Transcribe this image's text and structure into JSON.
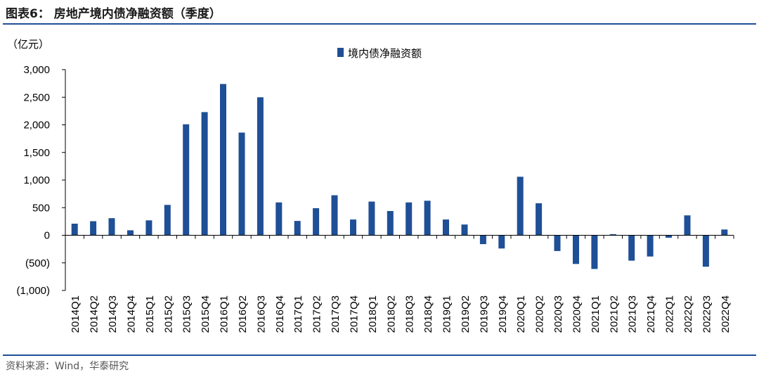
{
  "figure": {
    "title": "图表6：  房地产境内债净融资额（季度）",
    "source": "资料来源：Wind，华泰研究"
  },
  "chart_data": {
    "type": "bar",
    "unit_label": "（亿元）",
    "legend": "境内债净融资额",
    "legend_position": "top-center",
    "ylim": [
      -1000,
      3000
    ],
    "yticks": [
      3000,
      2500,
      2000,
      1500,
      1000,
      500,
      0,
      -500,
      -1000
    ],
    "ytick_labels": [
      "3,000",
      "2,500",
      "2,000",
      "1,500",
      "1,000",
      "500",
      "0",
      "(500)",
      "(1,000)"
    ],
    "grid": false,
    "bar_color": "#1f4f96",
    "categories": [
      "2014Q1",
      "2014Q2",
      "2014Q3",
      "2014Q4",
      "2015Q1",
      "2015Q2",
      "2015Q3",
      "2015Q4",
      "2016Q1",
      "2016Q2",
      "2016Q3",
      "2016Q4",
      "2017Q1",
      "2017Q2",
      "2017Q3",
      "2017Q4",
      "2018Q1",
      "2018Q2",
      "2018Q3",
      "2018Q4",
      "2019Q1",
      "2019Q2",
      "2019Q3",
      "2019Q4",
      "2020Q1",
      "2020Q2",
      "2020Q3",
      "2020Q4",
      "2021Q1",
      "2021Q2",
      "2021Q3",
      "2021Q4",
      "2022Q1",
      "2022Q2",
      "2022Q3",
      "2022Q4"
    ],
    "series": [
      {
        "name": "境内债净融资额",
        "values": [
          210,
          255,
          310,
          90,
          270,
          550,
          2010,
          2230,
          2740,
          1860,
          2500,
          595,
          260,
          490,
          725,
          285,
          610,
          440,
          595,
          625,
          285,
          195,
          -160,
          -240,
          1060,
          580,
          -285,
          -520,
          -610,
          20,
          -460,
          -385,
          -45,
          360,
          -570,
          105
        ]
      }
    ]
  }
}
